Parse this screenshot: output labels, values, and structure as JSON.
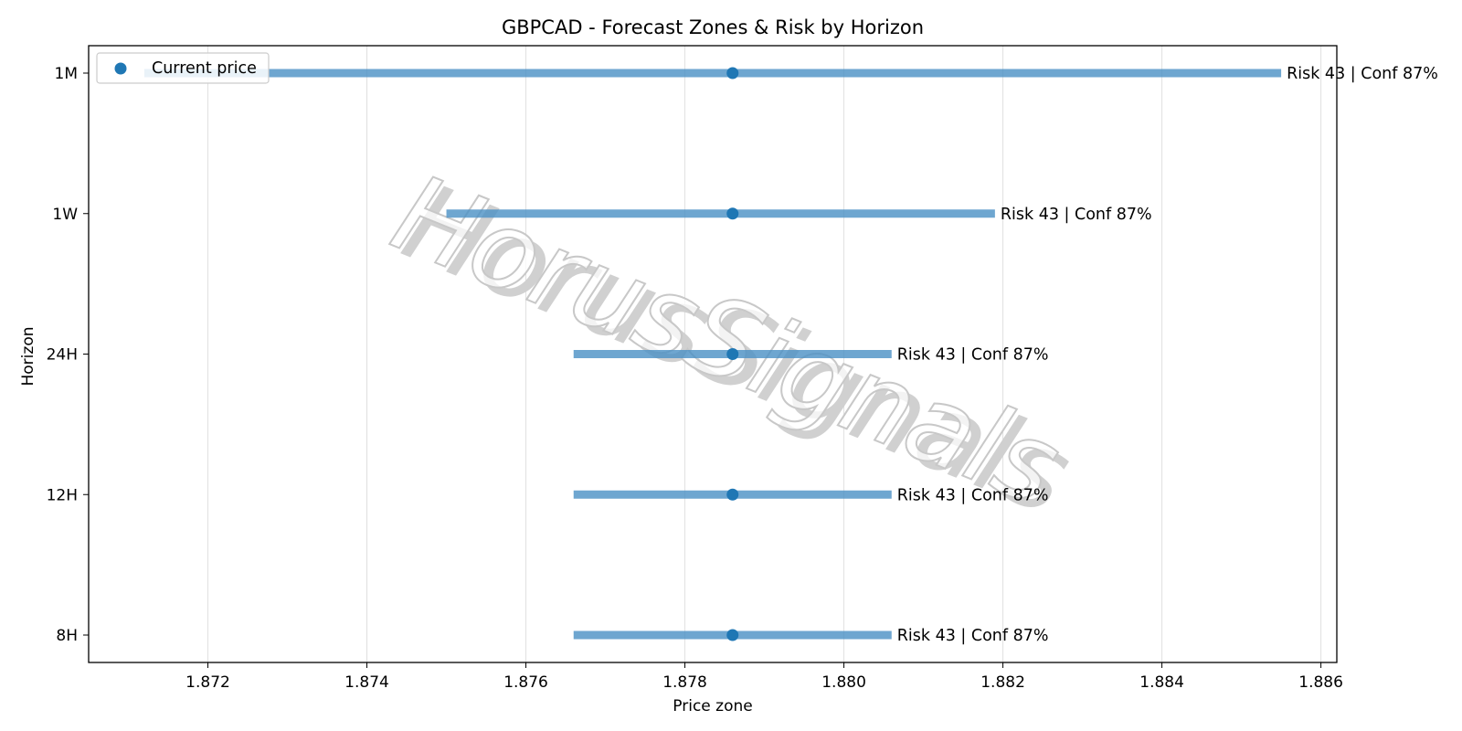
{
  "chart_data": {
    "type": "range",
    "title": "GBPCAD - Forecast Zones & Risk by Horizon",
    "xlabel": "Price zone",
    "ylabel": "Horizon",
    "xlim": [
      1.8705,
      1.8862
    ],
    "x_ticks": [
      "1.872",
      "1.874",
      "1.876",
      "1.878",
      "1.880",
      "1.882",
      "1.884",
      "1.886"
    ],
    "grid": "vertical",
    "legend": {
      "position": "top-left",
      "entries": [
        "Current price"
      ]
    },
    "current_price": 1.8786,
    "series": [
      {
        "category": "8H",
        "low": 1.8766,
        "high": 1.8806,
        "current": 1.8786,
        "label": "Risk 43 | Conf 87%"
      },
      {
        "category": "12H",
        "low": 1.8766,
        "high": 1.8806,
        "current": 1.8786,
        "label": "Risk 43 | Conf 87%"
      },
      {
        "category": "24H",
        "low": 1.8766,
        "high": 1.8806,
        "current": 1.8786,
        "label": "Risk 43 | Conf 87%"
      },
      {
        "category": "1W",
        "low": 1.875,
        "high": 1.8819,
        "current": 1.8786,
        "label": "Risk 43 | Conf 87%"
      },
      {
        "category": "1M",
        "low": 1.8712,
        "high": 1.8855,
        "current": 1.8786,
        "label": "Risk 43 | Conf 87%"
      }
    ],
    "colors": {
      "bar": "#4a90c4",
      "point": "#1f77b4",
      "grid": "#e0e0e0"
    }
  },
  "watermark": {
    "text": "HorusSignals"
  }
}
